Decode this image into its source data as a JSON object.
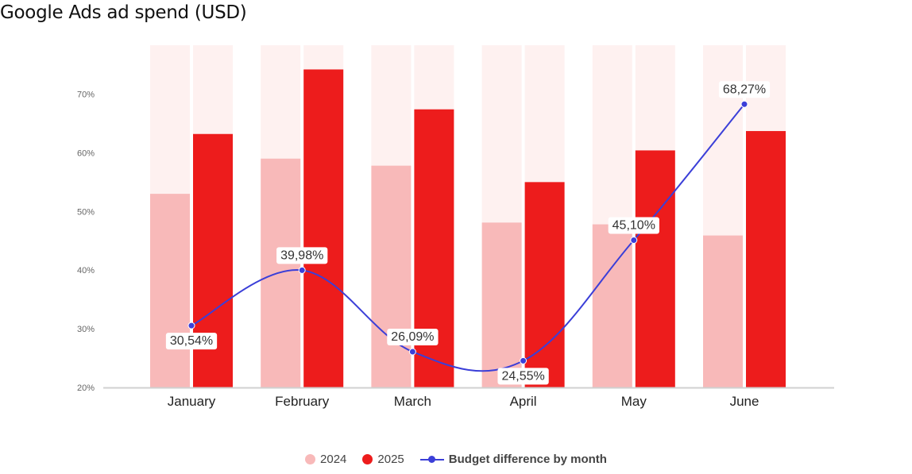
{
  "page": {
    "title": "Google Ads ad spend (USD)"
  },
  "colors": {
    "background_bar": "#fef1f0",
    "series_2024": "#f8b9b9",
    "series_2025": "#ed1c1c",
    "line": "#3b3fd8",
    "axis": "#d0d0d0"
  },
  "chart_data": {
    "type": "bar",
    "title": "Google Ads ad spend (USD)",
    "xlabel": "",
    "ylabel": "",
    "ylim": [
      20,
      80
    ],
    "yticks": [
      "20%",
      "30%",
      "40%",
      "50%",
      "60%",
      "70%"
    ],
    "categories": [
      "January",
      "February",
      "March",
      "April",
      "May",
      "June"
    ],
    "series": [
      {
        "name": "2024",
        "type": "bar",
        "values": [
          53,
          59,
          57.8,
          48.1,
          47.8,
          45.9
        ]
      },
      {
        "name": "2025",
        "type": "bar",
        "values": [
          63.2,
          74.2,
          67.4,
          55,
          60.4,
          63.7
        ]
      },
      {
        "name": "Budget difference by month",
        "type": "line",
        "values": [
          30.54,
          39.98,
          26.09,
          24.55,
          45.1,
          68.27
        ],
        "labels": [
          "30,54%",
          "39,98%",
          "26,09%",
          "24,55%",
          "45,10%",
          "68,27%"
        ]
      }
    ],
    "legend_position": "bottom-center",
    "grid": false
  }
}
